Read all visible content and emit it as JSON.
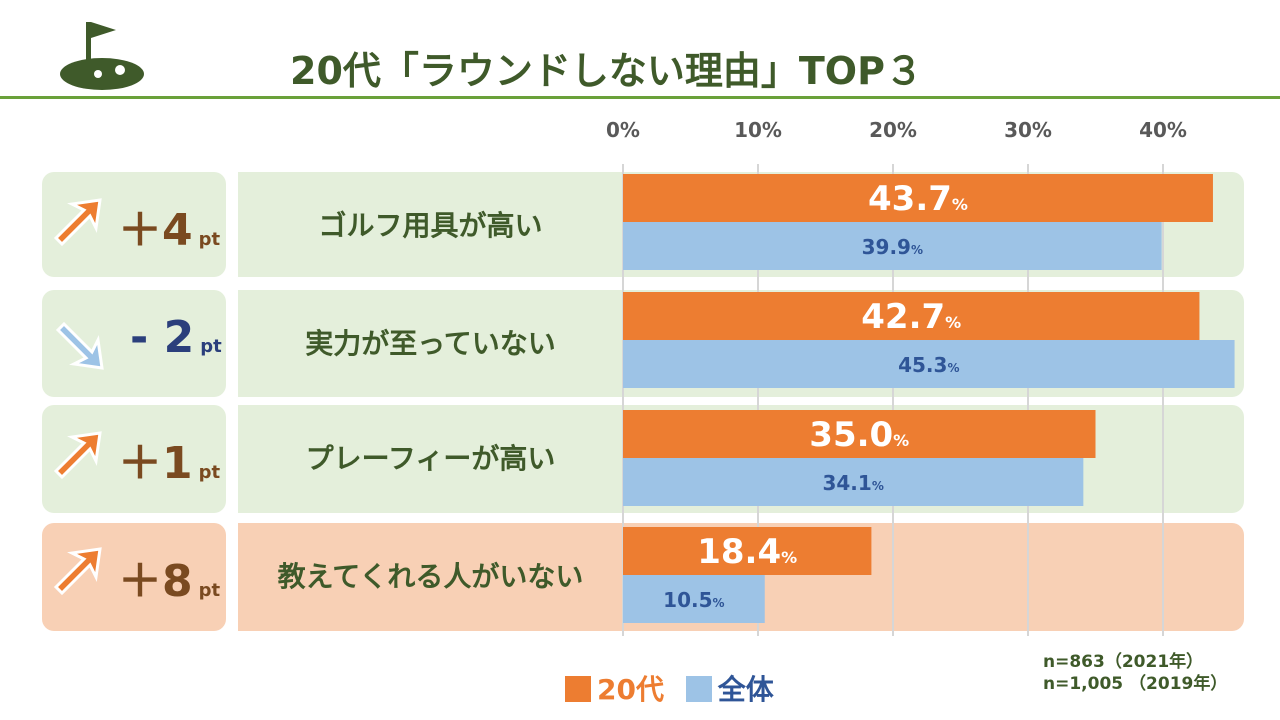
{
  "title": "20代「ラウンドしない理由」TOP３",
  "colors": {
    "series_20s": "#ed7d31",
    "series_all": "#9dc3e6",
    "title": "#3f5a2a",
    "rule": "#6aa13a"
  },
  "rows": [
    {
      "diff": "＋4",
      "unit": "pt",
      "direction": "up",
      "icon": "arrow-up-right-icon"
    },
    {
      "diff": "- 2",
      "unit": "pt",
      "direction": "down",
      "icon": "arrow-down-right-icon"
    },
    {
      "diff": "＋1",
      "unit": "pt",
      "direction": "up",
      "icon": "arrow-up-right-icon"
    },
    {
      "diff": "＋8",
      "unit": "pt",
      "direction": "up",
      "icon": "arrow-up-right-icon"
    }
  ],
  "chart_data": {
    "type": "bar",
    "orientation": "horizontal",
    "categories": [
      "ゴルフ用具が高い",
      "実力が至っていない",
      "プレーフィーが高い",
      "教えてくれる人がいない"
    ],
    "series": [
      {
        "name": "20代",
        "values": [
          43.7,
          42.7,
          35.0,
          18.4
        ]
      },
      {
        "name": "全体",
        "values": [
          39.9,
          45.3,
          34.1,
          10.5
        ]
      }
    ],
    "value_labels": {
      "20代": [
        "43.7",
        "42.7",
        "35.0",
        "18.4"
      ],
      "全体": [
        "39.9",
        "45.3",
        "34.1",
        "10.5"
      ]
    },
    "value_suffix": "%",
    "xlim": [
      0,
      45
    ],
    "xticks": [
      0,
      10,
      20,
      30,
      40
    ],
    "xtick_labels": [
      "0%",
      "10%",
      "20%",
      "30%",
      "40%"
    ],
    "legend_position": "bottom-center",
    "grid": true
  },
  "legend": [
    "20代",
    "全体"
  ],
  "notes": [
    "n=863（2021年）",
    "n=1,005 （2019年）"
  ]
}
